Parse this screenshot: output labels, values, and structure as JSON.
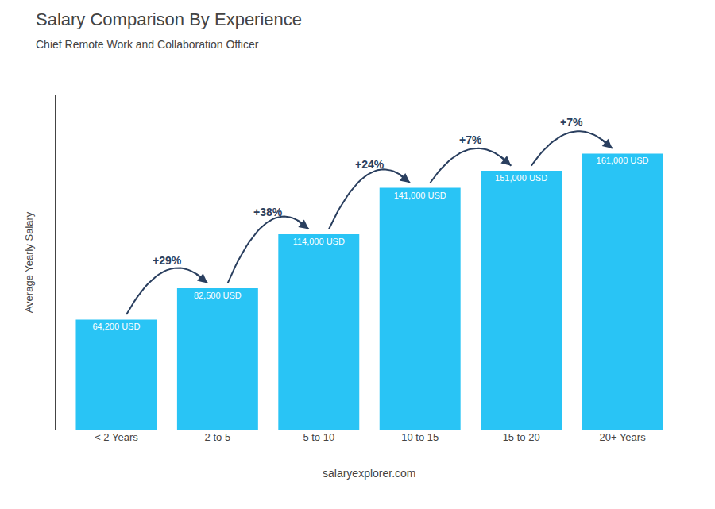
{
  "chart_data": {
    "type": "bar",
    "title": "Salary Comparison By Experience",
    "subtitle": "Chief Remote Work and Collaboration Officer",
    "categories": [
      "< 2 Years",
      "2 to 5",
      "5 to 10",
      "10 to 15",
      "15 to 20",
      "20+ Years"
    ],
    "values": [
      64200,
      82500,
      114000,
      141000,
      151000,
      161000
    ],
    "value_labels": [
      "64,200 USD",
      "82,500 USD",
      "114,000 USD",
      "141,000 USD",
      "151,000 USD",
      "161,000 USD"
    ],
    "data_labels": true,
    "color": "#29c4f5",
    "ylabel": "Average Yearly Salary",
    "ylim": [
      0,
      195000
    ],
    "yticks": [],
    "tick_labels": "x",
    "grid": false,
    "annotations": [
      "+29%",
      "+38%",
      "+24%",
      "+7%",
      "+7%"
    ],
    "footer": "salaryexplorer.com"
  }
}
